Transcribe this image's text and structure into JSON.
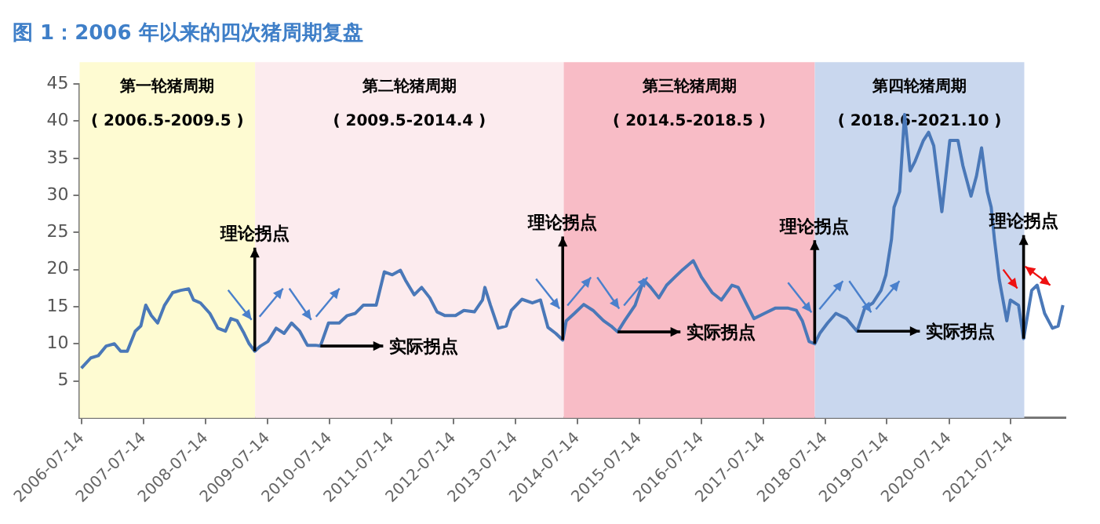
{
  "chart_data": {
    "type": "line",
    "title": "图 1：2006 年以来的四次猪周期复盘",
    "series": [
      {
        "color": "#4a78b8",
        "x": [
          "2006-07-11",
          "2006-09-05",
          "2006-10-19",
          "2006-12-05",
          "2007-01-22",
          "2007-02-28",
          "2007-04-08",
          "2007-05-25",
          "2007-06-27",
          "2007-07-26",
          "2007-08-28",
          "2007-10-04",
          "2007-11-14",
          "2008-01-01",
          "2008-02-17",
          "2008-04-04",
          "2008-05-03",
          "2008-06-13",
          "2008-08-07",
          "2008-09-23",
          "2008-11-07",
          "2008-12-09",
          "2009-01-15",
          "2009-02-25",
          "2009-03-27",
          "2009-04-29",
          "2009-06-02",
          "2009-07-15",
          "2009-09-02",
          "2009-10-19",
          "2009-12-02",
          "2010-01-19",
          "2010-03-05",
          "2010-04-22",
          "2010-05-21",
          "2010-07-08",
          "2010-09-09",
          "2010-10-26",
          "2010-12-13",
          "2011-01-29",
          "2011-04-15",
          "2011-06-02",
          "2011-07-19",
          "2011-09-05",
          "2011-10-04",
          "2011-11-25",
          "2012-01-08",
          "2012-02-25",
          "2012-04-08",
          "2012-05-25",
          "2012-07-26",
          "2012-09-13",
          "2012-11-14",
          "2013-01-01",
          "2013-01-15",
          "2013-02-17",
          "2013-04-04",
          "2013-05-21",
          "2013-06-20",
          "2013-08-21",
          "2013-10-22",
          "2013-12-09",
          "2014-01-22",
          "2014-03-09",
          "2014-04-19",
          "2014-05-10",
          "2014-06-27",
          "2014-08-21",
          "2014-10-15",
          "2014-12-16",
          "2015-01-29",
          "2015-03-09",
          "2015-04-19",
          "2015-06-20",
          "2015-08-10",
          "2015-09-20",
          "2015-11-07",
          "2015-12-23",
          "2016-02-10",
          "2016-03-27",
          "2016-05-28",
          "2016-07-15",
          "2016-09-16",
          "2016-11-10",
          "2017-01-11",
          "2017-02-17",
          "2017-04-04",
          "2017-05-21",
          "2017-07-22",
          "2017-09-23",
          "2017-12-09",
          "2018-01-26",
          "2018-03-02",
          "2018-04-11",
          "2018-05-14",
          "2018-06-13",
          "2018-07-29",
          "2018-09-16",
          "2018-11-17",
          "2019-01-19",
          "2019-03-05",
          "2019-04-22",
          "2019-06-09",
          "2019-07-08",
          "2019-08-10",
          "2019-08-25",
          "2019-09-27",
          "2019-10-26",
          "2019-11-28",
          "2019-12-27",
          "2020-02-14",
          "2020-03-16",
          "2020-04-15",
          "2020-06-02",
          "2020-07-19",
          "2020-09-05",
          "2020-10-04",
          "2020-11-21",
          "2020-12-23",
          "2021-01-22",
          "2021-02-25",
          "2021-03-20",
          "2021-04-08",
          "2021-05-07",
          "2021-06-20",
          "2021-07-11",
          "2021-08-28",
          "2021-09-27",
          "2021-11-14",
          "2021-12-16",
          "2022-01-29",
          "2022-03-16",
          "2022-04-19",
          "2022-05-17"
        ],
        "values": [
          6.7,
          8.1,
          8.4,
          9.7,
          10,
          9,
          9,
          11.7,
          12.4,
          15.2,
          13.8,
          12.8,
          15.2,
          16.9,
          17.2,
          17.4,
          15.9,
          15.5,
          14.1,
          12.1,
          11.7,
          13.4,
          13.1,
          11.4,
          10,
          9,
          9.7,
          10.3,
          12.1,
          11.4,
          12.8,
          11.7,
          9.8,
          9.8,
          9.7,
          12.8,
          12.8,
          13.8,
          14.1,
          15.2,
          15.2,
          19.7,
          19.3,
          19.9,
          18.6,
          16.6,
          17.6,
          16.2,
          14.3,
          13.8,
          13.8,
          14.5,
          14.3,
          15.9,
          17.6,
          15.2,
          12.1,
          12.4,
          14.5,
          16,
          15.5,
          15.9,
          12.2,
          11.4,
          10.5,
          13.1,
          14.1,
          15.3,
          14.5,
          13.1,
          12.4,
          11.6,
          13.1,
          15.2,
          18.6,
          17.6,
          16.2,
          17.9,
          19,
          20,
          21.2,
          19,
          16.9,
          15.9,
          17.9,
          17.6,
          15.5,
          13.4,
          14.1,
          14.8,
          14.8,
          14.5,
          13.1,
          10.3,
          10,
          11.4,
          12.8,
          14.1,
          13.4,
          11.7,
          14.8,
          15.5,
          17.2,
          19.3,
          24.1,
          28.4,
          30.5,
          40.9,
          33.3,
          34.6,
          37.4,
          38.5,
          36.7,
          27.8,
          37.4,
          37.4,
          34,
          29.9,
          32.6,
          36.4,
          30.5,
          28.4,
          24.1,
          18.6,
          13.1,
          15.9,
          15.2,
          10.7,
          17.2,
          17.9,
          14.1,
          12.1,
          12.4,
          15.2
        ]
      }
    ],
    "xlim": [
      "2006-07-01",
      "2022-06-01"
    ],
    "xticks": [
      "2006-07-14",
      "2007-07-14",
      "2008-07-14",
      "2009-07-14",
      "2010-07-14",
      "2011-07-14",
      "2012-07-14",
      "2013-07-14",
      "2014-07-14",
      "2015-07-14",
      "2016-07-14",
      "2017-07-14",
      "2018-07-14",
      "2019-07-14",
      "2020-07-14",
      "2021-07-14"
    ],
    "ylim": [
      0,
      45
    ],
    "yticks": [
      5,
      10,
      15,
      20,
      25,
      30,
      35,
      40,
      45
    ],
    "grid": false,
    "legend": false,
    "marker": "none",
    "line_style": "solid",
    "bands": [
      {
        "axis": "x",
        "from": "2006-07-01",
        "to": "2009-05-01",
        "label": "第一轮猪周期\n( 2006.5-2009.5 )",
        "color": "#fefbd2"
      },
      {
        "axis": "x",
        "from": "2009-05-01",
        "to": "2014-04-25",
        "label": "第二轮猪周期\n( 2009.5-2014.4 )",
        "color": "#fcebee"
      },
      {
        "axis": "x",
        "from": "2014-04-25",
        "to": "2018-05-15",
        "label": "第三轮猪周期\n( 2014.5-2018.5 )",
        "color": "#f8bcc6"
      },
      {
        "axis": "x",
        "from": "2018-05-15",
        "to": "2021-10-01",
        "label": "第四轮猪周期\n( 2018.6-2021.10 )",
        "color": "#c9d7ee"
      }
    ],
    "annotations": [
      {
        "text": "理论拐点",
        "x": "2009-04-29",
        "y": 9
      },
      {
        "text": "实际拐点",
        "x": "2010-05-21",
        "y": 9.7
      },
      {
        "text": "理论拐点",
        "x": "2014-04-19",
        "y": 10.5
      },
      {
        "text": "实际拐点",
        "x": "2015-03-09",
        "y": 11.6
      },
      {
        "text": "理论拐点",
        "x": "2018-05-14",
        "y": 10
      },
      {
        "text": "实际拐点",
        "x": "2019-01-19",
        "y": 11.7
      },
      {
        "text": "理论拐点",
        "x": "2021-09-27",
        "y": 10.7
      }
    ]
  }
}
